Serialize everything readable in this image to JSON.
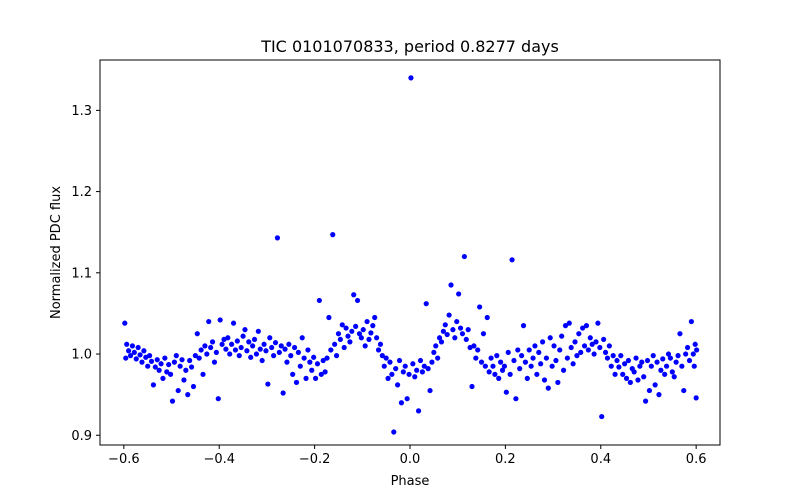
{
  "chart_data": {
    "type": "scatter",
    "title": "TIC 0101070833, period 0.8277 days",
    "xlabel": "Phase",
    "ylabel": "Normalized PDC flux",
    "xlim": [
      -0.65,
      0.65
    ],
    "ylim": [
      0.888,
      1.362
    ],
    "xticks": [
      -0.6,
      -0.4,
      -0.2,
      0.0,
      0.2,
      0.4,
      0.6
    ],
    "xtick_labels": [
      "−0.6",
      "−0.4",
      "−0.2",
      "0.0",
      "0.2",
      "0.4",
      "0.6"
    ],
    "yticks": [
      0.9,
      1.0,
      1.1,
      1.2,
      1.3
    ],
    "ytick_labels": [
      "0.9",
      "1.0",
      "1.1",
      "1.2",
      "1.3"
    ],
    "grid": false,
    "marker_color": "#0000ff",
    "series": [
      {
        "points": [
          [
            -0.598,
            1.038
          ],
          [
            -0.596,
            0.995
          ],
          [
            -0.594,
            1.012
          ],
          [
            -0.59,
            1.004
          ],
          [
            -0.586,
            0.998
          ],
          [
            -0.582,
            1.01
          ],
          [
            -0.578,
            1.002
          ],
          [
            -0.574,
            0.994
          ],
          [
            -0.57,
            1.008
          ],
          [
            -0.566,
            0.999
          ],
          [
            -0.562,
            0.99
          ],
          [
            -0.558,
            1.004
          ],
          [
            -0.554,
            0.996
          ],
          [
            -0.55,
            0.985
          ],
          [
            -0.546,
            0.998
          ],
          [
            -0.542,
            0.991
          ],
          [
            -0.538,
            0.962
          ],
          [
            -0.534,
            0.984
          ],
          [
            -0.53,
            0.993
          ],
          [
            -0.526,
            0.98
          ],
          [
            -0.522,
            0.988
          ],
          [
            -0.518,
            0.97
          ],
          [
            -0.514,
            0.995
          ],
          [
            -0.51,
            0.978
          ],
          [
            -0.506,
            0.987
          ],
          [
            -0.502,
            0.975
          ],
          [
            -0.498,
            0.942
          ],
          [
            -0.494,
            0.99
          ],
          [
            -0.49,
            0.998
          ],
          [
            -0.486,
            0.955
          ],
          [
            -0.482,
            0.985
          ],
          [
            -0.478,
            0.993
          ],
          [
            -0.474,
            0.968
          ],
          [
            -0.47,
            0.98
          ],
          [
            -0.466,
            0.95
          ],
          [
            -0.462,
            0.992
          ],
          [
            -0.458,
            0.984
          ],
          [
            -0.454,
            0.96
          ],
          [
            -0.45,
            0.998
          ],
          [
            -0.446,
            1.025
          ],
          [
            -0.442,
            0.995
          ],
          [
            -0.438,
            1.005
          ],
          [
            -0.434,
            0.975
          ],
          [
            -0.43,
            1.01
          ],
          [
            -0.426,
            1.0
          ],
          [
            -0.422,
            1.04
          ],
          [
            -0.418,
            1.008
          ],
          [
            -0.414,
            1.015
          ],
          [
            -0.41,
            0.99
          ],
          [
            -0.406,
            1.002
          ],
          [
            -0.402,
            0.945
          ],
          [
            -0.398,
            1.042
          ],
          [
            -0.394,
            1.012
          ],
          [
            -0.39,
            1.018
          ],
          [
            -0.386,
            1.006
          ],
          [
            -0.382,
            1.02
          ],
          [
            -0.378,
            1.0
          ],
          [
            -0.374,
            1.012
          ],
          [
            -0.37,
            1.038
          ],
          [
            -0.366,
            1.005
          ],
          [
            -0.362,
            1.016
          ],
          [
            -0.358,
            0.998
          ],
          [
            -0.354,
            1.008
          ],
          [
            -0.35,
            1.022
          ],
          [
            -0.346,
            1.03
          ],
          [
            -0.342,
            1.004
          ],
          [
            -0.338,
            1.015
          ],
          [
            -0.334,
            0.996
          ],
          [
            -0.33,
            1.01
          ],
          [
            -0.326,
            1.018
          ],
          [
            -0.322,
            1.0
          ],
          [
            -0.318,
            1.028
          ],
          [
            -0.314,
            1.006
          ],
          [
            -0.31,
            0.992
          ],
          [
            -0.306,
            1.012
          ],
          [
            -0.302,
            1.004
          ],
          [
            -0.298,
            0.963
          ],
          [
            -0.294,
            1.02
          ],
          [
            -0.29,
            1.008
          ],
          [
            -0.286,
            0.998
          ],
          [
            -0.282,
            1.014
          ],
          [
            -0.278,
            1.143
          ],
          [
            -0.274,
            1.002
          ],
          [
            -0.27,
            1.01
          ],
          [
            -0.266,
            0.952
          ],
          [
            -0.262,
            1.006
          ],
          [
            -0.258,
            0.99
          ],
          [
            -0.254,
            1.012
          ],
          [
            -0.25,
            0.998
          ],
          [
            -0.246,
            0.975
          ],
          [
            -0.242,
            1.008
          ],
          [
            -0.238,
            0.965
          ],
          [
            -0.234,
            1.002
          ],
          [
            -0.23,
            0.985
          ],
          [
            -0.226,
            1.02
          ],
          [
            -0.222,
            0.995
          ],
          [
            -0.218,
            0.97
          ],
          [
            -0.214,
            1.005
          ],
          [
            -0.21,
            0.99
          ],
          [
            -0.206,
            0.98
          ],
          [
            -0.202,
            0.996
          ],
          [
            -0.198,
            0.97
          ],
          [
            -0.194,
            0.988
          ],
          [
            -0.19,
            1.066
          ],
          [
            -0.186,
            0.975
          ],
          [
            -0.182,
            0.992
          ],
          [
            -0.178,
            0.978
          ],
          [
            -0.174,
            0.995
          ],
          [
            -0.17,
            1.045
          ],
          [
            -0.166,
            1.005
          ],
          [
            -0.162,
            1.147
          ],
          [
            -0.158,
            1.012
          ],
          [
            -0.154,
            0.998
          ],
          [
            -0.15,
            1.025
          ],
          [
            -0.146,
            1.018
          ],
          [
            -0.142,
            1.036
          ],
          [
            -0.138,
            1.008
          ],
          [
            -0.134,
            1.032
          ],
          [
            -0.13,
            1.022
          ],
          [
            -0.126,
            1.015
          ],
          [
            -0.122,
            1.028
          ],
          [
            -0.118,
            1.073
          ],
          [
            -0.114,
            1.034
          ],
          [
            -0.11,
            1.066
          ],
          [
            -0.106,
            1.025
          ],
          [
            -0.102,
            1.02
          ],
          [
            -0.098,
            1.03
          ],
          [
            -0.094,
            1.01
          ],
          [
            -0.09,
            1.04
          ],
          [
            -0.086,
            1.018
          ],
          [
            -0.082,
            1.026
          ],
          [
            -0.078,
            1.035
          ],
          [
            -0.074,
            1.045
          ],
          [
            -0.07,
            1.02
          ],
          [
            -0.066,
            1.005
          ],
          [
            -0.062,
            1.012
          ],
          [
            -0.058,
            0.998
          ],
          [
            -0.054,
            0.985
          ],
          [
            -0.05,
            0.995
          ],
          [
            -0.046,
            0.97
          ],
          [
            -0.042,
            0.99
          ],
          [
            -0.038,
            0.975
          ],
          [
            -0.034,
            0.904
          ],
          [
            -0.03,
            0.982
          ],
          [
            -0.026,
            0.962
          ],
          [
            -0.022,
            0.992
          ],
          [
            -0.018,
            0.94
          ],
          [
            -0.014,
            0.978
          ],
          [
            -0.01,
            0.985
          ],
          [
            -0.006,
            0.945
          ],
          [
            -0.002,
            0.975
          ],
          [
            0.002,
            1.34
          ],
          [
            0.006,
            0.988
          ],
          [
            0.01,
            0.972
          ],
          [
            0.014,
            0.98
          ],
          [
            0.018,
            0.93
          ],
          [
            0.022,
            0.992
          ],
          [
            0.026,
            0.978
          ],
          [
            0.03,
            0.985
          ],
          [
            0.034,
            1.062
          ],
          [
            0.038,
            0.982
          ],
          [
            0.042,
            0.955
          ],
          [
            0.046,
            0.99
          ],
          [
            0.05,
            1.002
          ],
          [
            0.054,
            1.01
          ],
          [
            0.058,
            0.995
          ],
          [
            0.062,
            1.02
          ],
          [
            0.066,
            1.015
          ],
          [
            0.07,
            1.028
          ],
          [
            0.074,
            1.036
          ],
          [
            0.078,
            1.024
          ],
          [
            0.082,
            1.048
          ],
          [
            0.086,
            1.085
          ],
          [
            0.09,
            1.03
          ],
          [
            0.094,
            1.02
          ],
          [
            0.098,
            1.04
          ],
          [
            0.102,
            1.074
          ],
          [
            0.106,
            1.032
          ],
          [
            0.11,
            1.025
          ],
          [
            0.114,
            1.12
          ],
          [
            0.118,
            1.018
          ],
          [
            0.122,
            1.03
          ],
          [
            0.126,
            1.008
          ],
          [
            0.13,
            0.96
          ],
          [
            0.134,
            1.01
          ],
          [
            0.138,
            0.995
          ],
          [
            0.142,
            1.005
          ],
          [
            0.146,
            1.058
          ],
          [
            0.15,
            0.99
          ],
          [
            0.154,
            1.025
          ],
          [
            0.158,
            0.985
          ],
          [
            0.162,
            1.045
          ],
          [
            0.166,
            0.978
          ],
          [
            0.17,
            0.995
          ],
          [
            0.174,
            0.985
          ],
          [
            0.178,
            0.975
          ],
          [
            0.182,
            0.998
          ],
          [
            0.186,
            0.97
          ],
          [
            0.19,
            0.99
          ],
          [
            0.194,
            0.98
          ],
          [
            0.198,
            0.985
          ],
          [
            0.202,
            0.953
          ],
          [
            0.206,
            1.002
          ],
          [
            0.21,
            0.975
          ],
          [
            0.214,
            1.116
          ],
          [
            0.218,
            0.992
          ],
          [
            0.222,
            0.945
          ],
          [
            0.226,
            1.005
          ],
          [
            0.23,
            0.982
          ],
          [
            0.234,
            0.998
          ],
          [
            0.238,
            1.035
          ],
          [
            0.242,
            0.99
          ],
          [
            0.246,
            0.97
          ],
          [
            0.25,
            1.005
          ],
          [
            0.254,
            0.985
          ],
          [
            0.258,
            0.995
          ],
          [
            0.262,
            1.01
          ],
          [
            0.266,
            0.975
          ],
          [
            0.27,
            1.002
          ],
          [
            0.274,
            0.988
          ],
          [
            0.278,
            1.015
          ],
          [
            0.282,
            0.968
          ],
          [
            0.286,
            0.995
          ],
          [
            0.29,
            0.958
          ],
          [
            0.294,
            1.02
          ],
          [
            0.298,
            0.985
          ],
          [
            0.302,
            1.01
          ],
          [
            0.306,
            0.992
          ],
          [
            0.31,
            0.965
          ],
          [
            0.314,
            1.005
          ],
          [
            0.318,
            1.022
          ],
          [
            0.322,
            0.98
          ],
          [
            0.326,
            1.035
          ],
          [
            0.33,
            0.995
          ],
          [
            0.334,
            1.038
          ],
          [
            0.338,
            1.008
          ],
          [
            0.342,
            0.988
          ],
          [
            0.346,
            1.015
          ],
          [
            0.35,
            0.998
          ],
          [
            0.354,
            1.025
          ],
          [
            0.358,
            1.002
          ],
          [
            0.362,
            1.032
          ],
          [
            0.366,
            1.01
          ],
          [
            0.37,
            1.035
          ],
          [
            0.374,
            1.005
          ],
          [
            0.378,
            1.02
          ],
          [
            0.382,
            1.012
          ],
          [
            0.386,
            1.0
          ],
          [
            0.39,
            1.015
          ],
          [
            0.394,
            1.038
          ],
          [
            0.398,
            1.008
          ],
          [
            0.402,
            0.923
          ],
          [
            0.406,
            1.018
          ],
          [
            0.41,
            1.002
          ],
          [
            0.414,
            0.995
          ],
          [
            0.418,
            1.01
          ],
          [
            0.422,
            0.985
          ],
          [
            0.426,
            0.998
          ],
          [
            0.43,
            0.975
          ],
          [
            0.434,
            0.992
          ],
          [
            0.438,
            0.984
          ],
          [
            0.442,
            0.998
          ],
          [
            0.446,
            0.975
          ],
          [
            0.45,
            0.988
          ],
          [
            0.454,
            0.97
          ],
          [
            0.458,
            0.992
          ],
          [
            0.462,
            0.965
          ],
          [
            0.466,
            0.982
          ],
          [
            0.47,
            0.978
          ],
          [
            0.474,
            0.995
          ],
          [
            0.478,
            0.968
          ],
          [
            0.482,
            0.985
          ],
          [
            0.486,
            0.99
          ],
          [
            0.49,
            0.972
          ],
          [
            0.494,
            0.942
          ],
          [
            0.498,
            0.992
          ],
          [
            0.502,
            0.955
          ],
          [
            0.506,
            0.985
          ],
          [
            0.51,
            0.998
          ],
          [
            0.514,
            0.962
          ],
          [
            0.518,
            0.99
          ],
          [
            0.522,
            0.95
          ],
          [
            0.526,
            0.98
          ],
          [
            0.53,
            0.994
          ],
          [
            0.534,
            0.975
          ],
          [
            0.538,
            0.985
          ],
          [
            0.542,
            1.0
          ],
          [
            0.546,
            0.995
          ],
          [
            0.55,
            0.978
          ],
          [
            0.554,
            0.972
          ],
          [
            0.558,
            0.99
          ],
          [
            0.562,
            0.998
          ],
          [
            0.566,
            1.025
          ],
          [
            0.57,
            0.985
          ],
          [
            0.574,
            0.955
          ],
          [
            0.578,
            1.0
          ],
          [
            0.582,
            1.008
          ],
          [
            0.586,
            0.992
          ],
          [
            0.59,
            1.04
          ],
          [
            0.594,
            1.0
          ],
          [
            0.596,
            0.985
          ],
          [
            0.598,
            1.012
          ],
          [
            0.6,
            0.946
          ],
          [
            0.601,
            1.005
          ]
        ]
      }
    ]
  }
}
